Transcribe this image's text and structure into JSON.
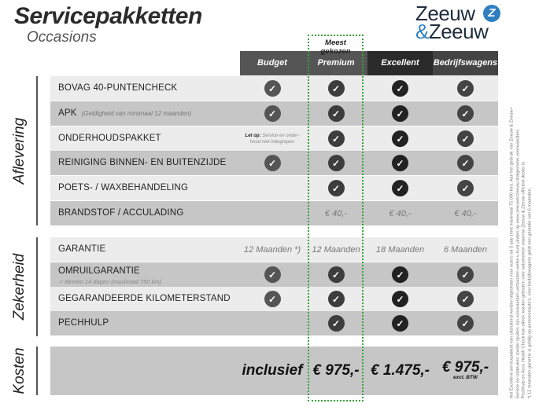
{
  "header": {
    "title": "Servicepakketten",
    "subtitle": "Occasions"
  },
  "logo": {
    "line1": "Zeeuw",
    "amp": "&",
    "line2": "Zeeuw",
    "mark": "Z"
  },
  "highlight": {
    "label": "Meest gekozen",
    "color": "#3aa33a"
  },
  "columns": [
    {
      "label": "Budget",
      "bg": "#555555",
      "check": "#555555"
    },
    {
      "label": "Premium",
      "bg": "#555555",
      "check": "#3d3d3d"
    },
    {
      "label": "Excellent",
      "bg": "#2a2a2a",
      "check": "#222222"
    },
    {
      "label": "Bedrijfswagens",
      "bg": "#444444",
      "check": "#444444"
    }
  ],
  "sections": [
    {
      "label": "Aflevering",
      "rows": [
        {
          "label": "BOVAG 40-PUNTENCHECK",
          "cells": [
            "check",
            "check",
            "check",
            "check"
          ]
        },
        {
          "label": "APK",
          "sub": "(Geldigheid van minimaal 12 maanden)",
          "cells": [
            "check",
            "check",
            "check",
            "check"
          ]
        },
        {
          "label": "ONDERHOUDSPAKKET",
          "cells": [
            {
              "note_bold": "Let op:",
              "note": "Service en onder-houd niet inbegrepen"
            },
            "check",
            "check",
            "check"
          ]
        },
        {
          "label": "REINIGING BINNEN- EN BUITENZIJDE",
          "cells": [
            "check",
            "check",
            "check",
            "check"
          ]
        },
        {
          "label": "POETS- / WAXBEHANDELING",
          "cells": [
            "",
            "check",
            "check",
            "check"
          ]
        },
        {
          "label": "BRANDSTOF / ACCULADING",
          "cells": [
            "",
            {
              "text": "€ 40,-"
            },
            {
              "text": "€ 40,-"
            },
            {
              "text": "€ 40,-"
            }
          ]
        }
      ]
    },
    {
      "label": "Zekerheid",
      "rows": [
        {
          "label": "GARANTIE",
          "cells": [
            {
              "text": "12 Maanden *)"
            },
            {
              "text": "12 Maanden"
            },
            {
              "text": "18 Maanden"
            },
            {
              "text": "6 Maanden"
            }
          ]
        },
        {
          "label": "OMRUILGARANTIE",
          "sub2": "✓  Binnen 14 dagen (maximaal 750 km)",
          "cells": [
            "check",
            "check",
            "check",
            "check"
          ]
        },
        {
          "label": "GEGARANDEERDE KILOMETERSTAND",
          "cells": [
            "check",
            "check",
            "check",
            "check"
          ]
        },
        {
          "label": "PECHHULP",
          "cells": [
            "",
            "check",
            "check",
            "check"
          ]
        }
      ]
    },
    {
      "label": "Kosten",
      "rows": [
        {
          "label": "",
          "cells": [
            {
              "price": "inclusief"
            },
            {
              "price": "€ 975,-"
            },
            {
              "price": "€ 1.475,-"
            },
            {
              "price": "€ 975,-",
              "small": "excl. BTW"
            }
          ]
        }
      ]
    }
  ],
  "footnote": [
    "Het Excellent-servicepakket kan uitsluitend worden afgesloten voor auto's tot 5 jaar (met maximaal 75.000 km). Aan het gebruik van Zeeuw & Zeeuw+",
    "Service en Uitdeuken zonder spuiten zijn voorwaarden verbonden welke u kunt vinden op www.zeeuwenzeeuw.nl/algemene-voorwaarden/.",
    "Pechhulp en Accu Health Check kan alleen worden geboden voor automerken waarvan Zeeuw & Zeeuw officieel dealer is.",
    "*) 12 maanden garantie is geldig op personenauto's, voor bedrijfswagens geldt een garantie van 6 maanden."
  ]
}
